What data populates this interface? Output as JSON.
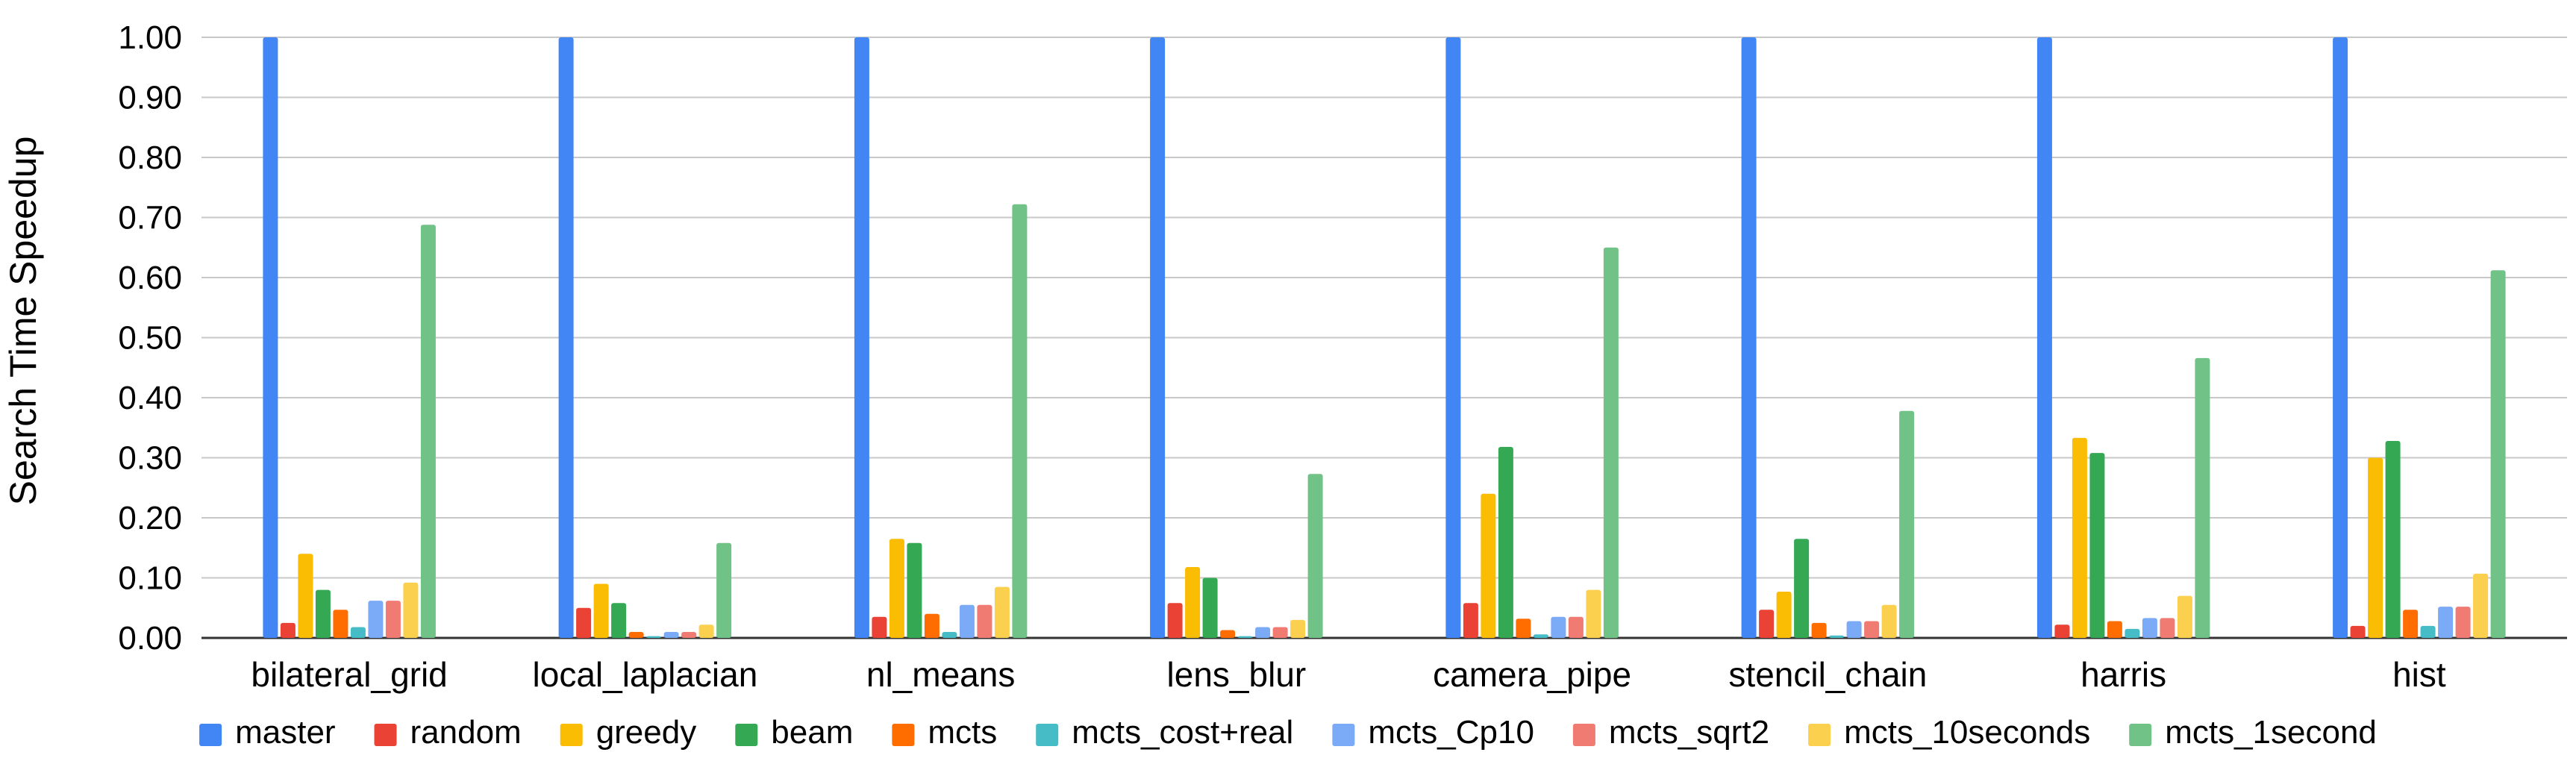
{
  "chart_data": {
    "type": "bar",
    "title": "",
    "xlabel": "",
    "ylabel": "Search Time Speedup",
    "ylim": [
      0,
      1.0
    ],
    "yticks": [
      "0.00",
      "0.10",
      "0.20",
      "0.30",
      "0.40",
      "0.50",
      "0.60",
      "0.70",
      "0.80",
      "0.90",
      "1.00"
    ],
    "grid": true,
    "legend_position": "bottom",
    "categories": [
      "bilateral_grid",
      "local_laplacian",
      "nl_means",
      "lens_blur",
      "camera_pipe",
      "stencil_chain",
      "harris",
      "hist"
    ],
    "series": [
      {
        "name": "master",
        "color": "#4285f4",
        "values": [
          1.0,
          1.0,
          1.0,
          1.0,
          1.0,
          1.0,
          1.0,
          1.0
        ]
      },
      {
        "name": "random",
        "color": "#ea4335",
        "values": [
          0.025,
          0.05,
          0.035,
          0.058,
          0.058,
          0.047,
          0.022,
          0.02
        ]
      },
      {
        "name": "greedy",
        "color": "#fbbc04",
        "values": [
          0.14,
          0.09,
          0.165,
          0.118,
          0.24,
          0.077,
          0.333,
          0.3
        ]
      },
      {
        "name": "beam",
        "color": "#34a853",
        "values": [
          0.08,
          0.058,
          0.158,
          0.1,
          0.318,
          0.165,
          0.308,
          0.328
        ]
      },
      {
        "name": "mcts",
        "color": "#ff6d01",
        "values": [
          0.047,
          0.01,
          0.04,
          0.013,
          0.032,
          0.025,
          0.028,
          0.047
        ]
      },
      {
        "name": "mcts_cost+real",
        "color": "#46bdc6",
        "values": [
          0.018,
          0.003,
          0.01,
          0.003,
          0.006,
          0.004,
          0.015,
          0.02
        ]
      },
      {
        "name": "mcts_Cp10",
        "color": "#7baaf7",
        "values": [
          0.062,
          0.01,
          0.055,
          0.018,
          0.035,
          0.028,
          0.033,
          0.052
        ]
      },
      {
        "name": "mcts_sqrt2",
        "color": "#f07b72",
        "values": [
          0.062,
          0.01,
          0.055,
          0.018,
          0.035,
          0.028,
          0.033,
          0.052
        ]
      },
      {
        "name": "mcts_10seconds",
        "color": "#fcd04f",
        "values": [
          0.092,
          0.022,
          0.085,
          0.03,
          0.08,
          0.055,
          0.07,
          0.107
        ]
      },
      {
        "name": "mcts_1second",
        "color": "#71c287",
        "values": [
          0.688,
          0.158,
          0.722,
          0.273,
          0.65,
          0.378,
          0.466,
          0.612
        ]
      }
    ]
  }
}
